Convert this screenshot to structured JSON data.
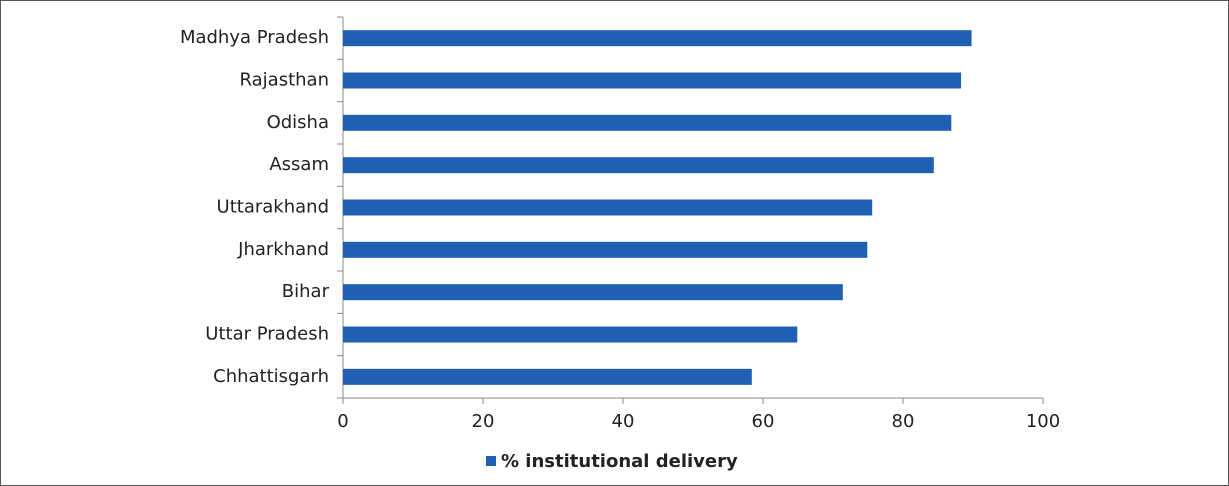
{
  "chart_data": {
    "type": "bar",
    "orientation": "horizontal",
    "categories": [
      "Madhya Pradesh",
      "Rajasthan",
      "Odisha",
      "Assam",
      "Uttarakhand",
      "Jharkhand",
      "Bihar",
      "Uttar Pradesh",
      "Chhattisgarh"
    ],
    "series": [
      {
        "name": "% institutional delivery",
        "color": "#1f5fb4",
        "values": [
          89.8,
          88.3,
          86.9,
          84.4,
          75.6,
          74.9,
          71.4,
          64.9,
          58.4
        ]
      }
    ],
    "xlim": [
      0,
      100
    ],
    "xticks": [
      0,
      20,
      40,
      60,
      80,
      100
    ],
    "grid": false,
    "legend": "bottom"
  }
}
